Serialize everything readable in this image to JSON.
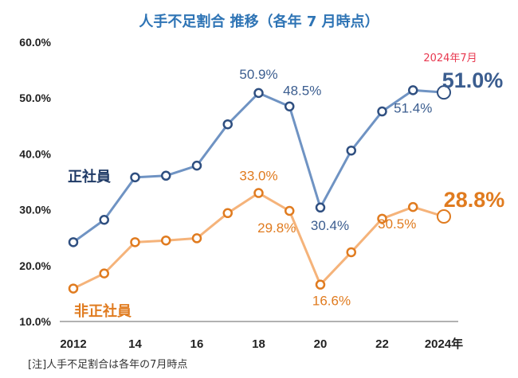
{
  "chart_data": {
    "type": "line",
    "title": "人手不足割合 推移（各年 7 月時点）",
    "x": [
      2012,
      2013,
      2014,
      2015,
      2016,
      2017,
      2018,
      2019,
      2020,
      2021,
      2022,
      2023,
      2024
    ],
    "x_tick_labels": [
      "2012",
      "14",
      "16",
      "18",
      "20",
      "22",
      "2024年"
    ],
    "x_tick_values": [
      2012,
      2014,
      2016,
      2018,
      2020,
      2022,
      2024
    ],
    "y_tick_labels": [
      "10.0%",
      "20.0%",
      "30.0%",
      "40.0%",
      "50.0%",
      "60.0%"
    ],
    "ylim": [
      10,
      60
    ],
    "series": [
      {
        "name": "正社員",
        "color": "#6f93c3",
        "marker_color": "#2f4f80",
        "values": [
          24.2,
          28.2,
          35.8,
          36.1,
          37.9,
          45.3,
          50.9,
          48.5,
          30.4,
          40.6,
          47.6,
          51.4,
          51.0
        ]
      },
      {
        "name": "非正社員",
        "color": "#f5b37a",
        "marker_color": "#e07b1f",
        "values": [
          15.9,
          18.6,
          24.2,
          24.5,
          24.9,
          29.4,
          33.0,
          29.8,
          16.6,
          22.4,
          28.4,
          30.5,
          28.8
        ]
      }
    ],
    "data_labels": [
      {
        "series": 0,
        "index": 6,
        "text": "50.9%"
      },
      {
        "series": 0,
        "index": 7,
        "text": "48.5%"
      },
      {
        "series": 0,
        "index": 8,
        "text": "30.4%"
      },
      {
        "series": 0,
        "index": 11,
        "text": "51.4%"
      },
      {
        "series": 0,
        "index": 12,
        "text": "51.0%"
      },
      {
        "series": 1,
        "index": 6,
        "text": "33.0%"
      },
      {
        "series": 1,
        "index": 7,
        "text": "29.8%"
      },
      {
        "series": 1,
        "index": 8,
        "text": "16.6%"
      },
      {
        "series": 1,
        "index": 11,
        "text": "30.5%"
      },
      {
        "series": 1,
        "index": 12,
        "text": "28.8%"
      }
    ],
    "annotation": "2024年7月",
    "note": "[注]人手不足割合は各年の7月時点",
    "grid": false,
    "legend": "inline"
  }
}
